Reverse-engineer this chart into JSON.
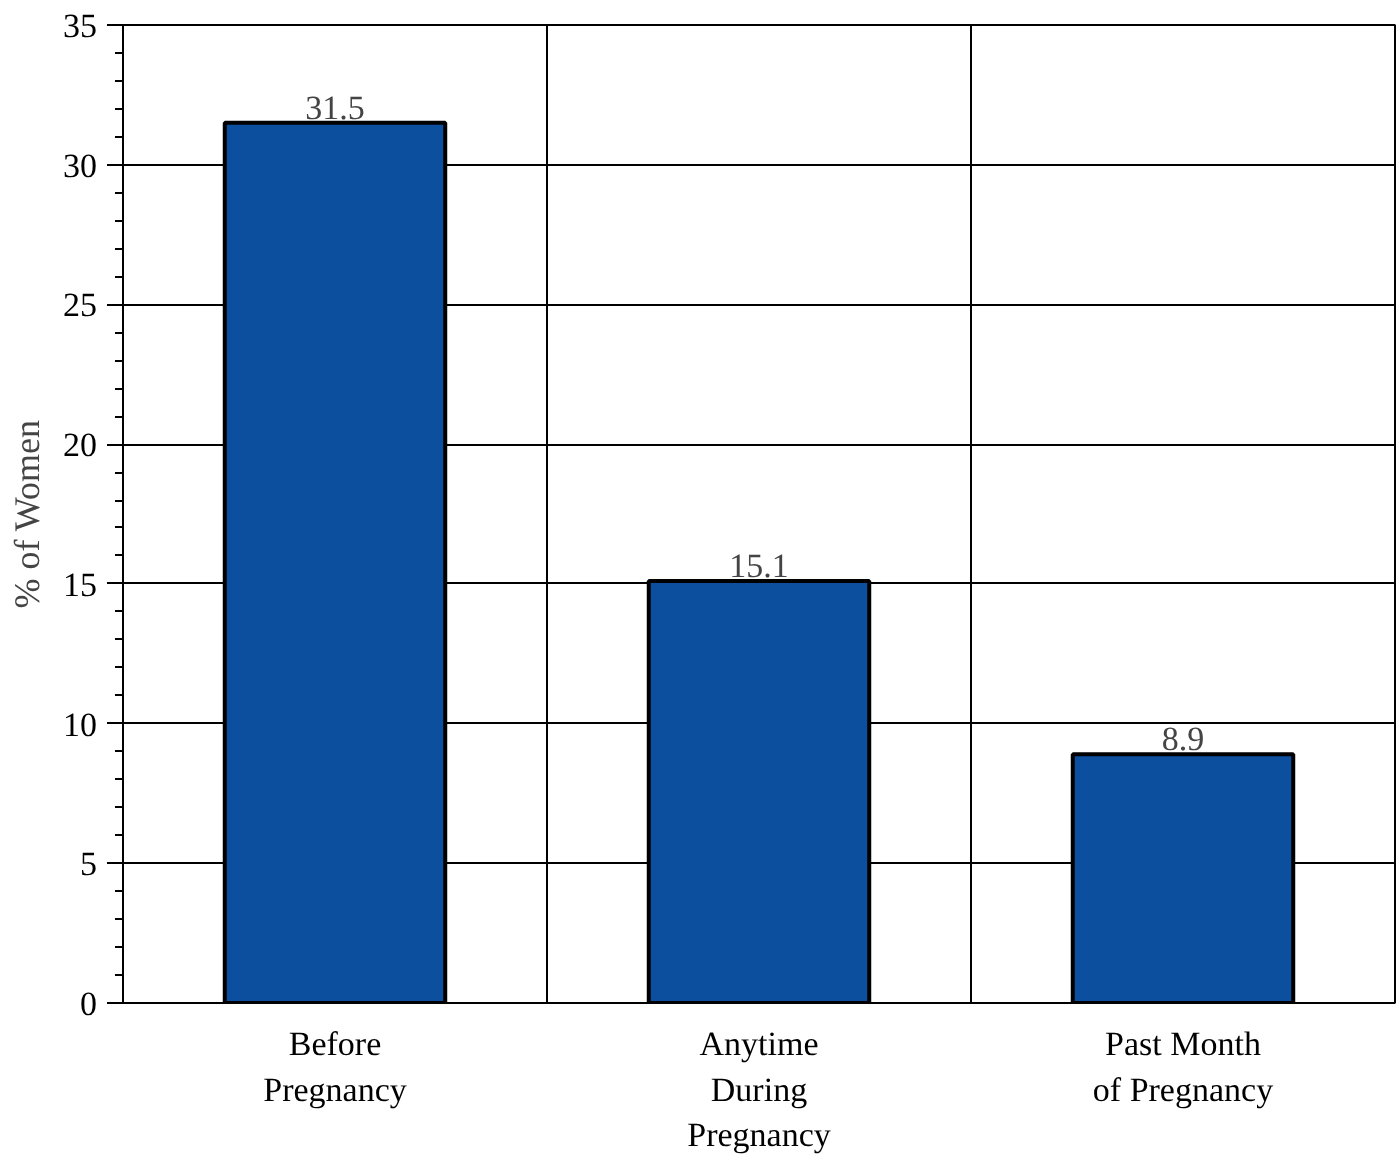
{
  "chart_data": {
    "type": "bar",
    "ylabel": "% of Women",
    "categories": [
      "Before\nPregnancy",
      "Anytime\nDuring\nPregnancy",
      "Past Month\nof Pregnancy"
    ],
    "values": [
      31.5,
      15.1,
      8.9
    ],
    "color": "#0b4f9e",
    "ylim": [
      0,
      35
    ],
    "yticks": [
      0,
      5,
      10,
      15,
      20,
      25,
      30,
      35
    ],
    "grid": true,
    "data_labels": true
  }
}
